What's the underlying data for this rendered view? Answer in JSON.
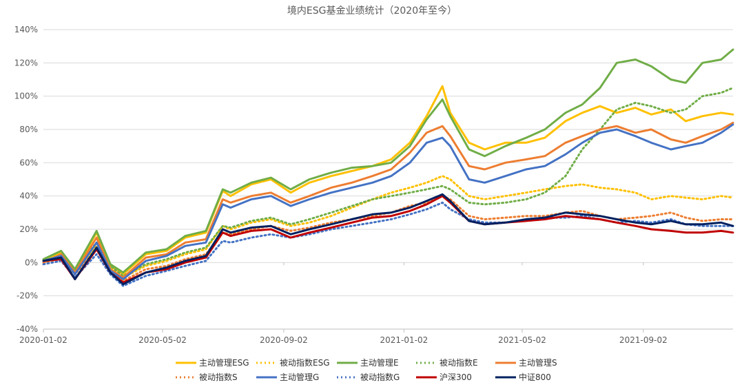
{
  "chart_data": {
    "type": "line",
    "title": "境内ESG基金业绩统计（2020年至今）",
    "y_tick_labels": [
      "140%",
      "120%",
      "100%",
      "80%",
      "60%",
      "40%",
      "20%",
      "0%",
      "-20%",
      "-40%"
    ],
    "x_tick_labels": [
      "2020-01-02",
      "2020-05-02",
      "2020-09-02",
      "2021-01-02",
      "2021-05-02",
      "2021-09-02"
    ],
    "ylim": [
      -40,
      140
    ],
    "y_unit": "%",
    "grid": "horizontal",
    "legend_position": "bottom",
    "x": [
      "2020-01-02",
      "2020-01-20",
      "2020-02-03",
      "2020-02-25",
      "2020-03-10",
      "2020-03-23",
      "2020-04-15",
      "2020-05-06",
      "2020-05-25",
      "2020-06-15",
      "2020-07-02",
      "2020-07-10",
      "2020-07-31",
      "2020-08-20",
      "2020-09-09",
      "2020-09-28",
      "2020-10-20",
      "2020-11-10",
      "2020-12-01",
      "2020-12-20",
      "2021-01-08",
      "2021-01-25",
      "2021-02-10",
      "2021-02-18",
      "2021-03-09",
      "2021-03-25",
      "2021-04-15",
      "2021-05-06",
      "2021-05-25",
      "2021-06-15",
      "2021-07-02",
      "2021-07-20",
      "2021-08-06",
      "2021-08-25",
      "2021-09-10",
      "2021-09-30",
      "2021-10-15",
      "2021-11-01",
      "2021-11-20",
      "2021-12-02"
    ],
    "series": [
      {
        "name": "主动管理ESG",
        "color": "#FFC000",
        "dash": "solid",
        "values": [
          1,
          6,
          -5,
          18,
          -2,
          -7,
          5,
          7,
          15,
          18,
          43,
          40,
          47,
          50,
          42,
          48,
          52,
          55,
          58,
          62,
          72,
          88,
          106,
          90,
          72,
          68,
          72,
          72,
          75,
          85,
          90,
          94,
          90,
          93,
          89,
          92,
          85,
          88,
          90,
          89
        ]
      },
      {
        "name": "被动指数ESG",
        "color": "#FFC000",
        "dash": "dot",
        "values": [
          1,
          3,
          -6,
          10,
          -3,
          -9,
          -2,
          1,
          5,
          8,
          22,
          20,
          24,
          26,
          22,
          24,
          28,
          33,
          38,
          42,
          45,
          48,
          52,
          50,
          40,
          38,
          40,
          42,
          44,
          46,
          47,
          45,
          44,
          42,
          38,
          40,
          39,
          38,
          40,
          39
        ]
      },
      {
        "name": "主动管理E",
        "color": "#70AD47",
        "dash": "solid",
        "values": [
          2,
          7,
          -4,
          19,
          -1,
          -6,
          6,
          8,
          16,
          19,
          44,
          42,
          48,
          51,
          44,
          50,
          54,
          57,
          58,
          60,
          70,
          86,
          98,
          88,
          68,
          64,
          70,
          75,
          80,
          90,
          95,
          105,
          120,
          122,
          118,
          110,
          108,
          120,
          122,
          128
        ]
      },
      {
        "name": "被动指数E",
        "color": "#70AD47",
        "dash": "dot",
        "values": [
          1,
          4,
          -5,
          12,
          -2,
          -8,
          -1,
          2,
          6,
          9,
          22,
          21,
          25,
          27,
          23,
          26,
          30,
          34,
          38,
          40,
          42,
          44,
          46,
          44,
          36,
          35,
          36,
          38,
          42,
          52,
          68,
          80,
          92,
          96,
          94,
          90,
          92,
          100,
          102,
          105
        ]
      },
      {
        "name": "主动管理S",
        "color": "#ED7D31",
        "dash": "solid",
        "values": [
          0,
          5,
          -6,
          15,
          -4,
          -9,
          3,
          5,
          12,
          14,
          38,
          36,
          40,
          42,
          36,
          40,
          45,
          48,
          52,
          56,
          66,
          78,
          82,
          76,
          58,
          56,
          60,
          62,
          64,
          72,
          76,
          80,
          82,
          78,
          80,
          74,
          72,
          76,
          80,
          84
        ]
      },
      {
        "name": "被动指数S",
        "color": "#ED7D31",
        "dash": "dot",
        "values": [
          0,
          2,
          -7,
          8,
          -5,
          -11,
          -4,
          -2,
          2,
          5,
          18,
          17,
          20,
          22,
          19,
          21,
          24,
          26,
          28,
          30,
          34,
          36,
          40,
          38,
          28,
          26,
          27,
          28,
          28,
          30,
          31,
          28,
          26,
          27,
          28,
          30,
          27,
          25,
          26,
          26
        ]
      },
      {
        "name": "主动管理G",
        "color": "#4472C4",
        "dash": "solid",
        "values": [
          1,
          4,
          -7,
          12,
          -5,
          -10,
          1,
          4,
          10,
          12,
          35,
          33,
          38,
          40,
          34,
          38,
          42,
          45,
          48,
          52,
          60,
          72,
          75,
          70,
          50,
          48,
          52,
          56,
          58,
          65,
          72,
          78,
          80,
          76,
          72,
          68,
          70,
          72,
          78,
          83
        ]
      },
      {
        "name": "被动指数G",
        "color": "#4472C4",
        "dash": "dot",
        "values": [
          -1,
          1,
          -9,
          5,
          -7,
          -14,
          -8,
          -5,
          -2,
          1,
          13,
          12,
          15,
          17,
          15,
          17,
          20,
          22,
          24,
          26,
          29,
          32,
          36,
          32,
          26,
          24,
          24,
          26,
          27,
          27,
          28,
          26,
          24,
          25,
          24,
          26,
          23,
          22,
          22,
          22
        ]
      },
      {
        "name": "沪深300",
        "color": "#C00000",
        "dash": "solid",
        "values": [
          1,
          2,
          -10,
          8,
          -6,
          -12,
          -6,
          -4,
          0,
          3,
          18,
          16,
          19,
          20,
          15,
          18,
          21,
          24,
          27,
          28,
          31,
          35,
          40,
          36,
          25,
          23,
          24,
          25,
          26,
          28,
          27,
          26,
          24,
          22,
          20,
          19,
          18,
          18,
          19,
          18
        ]
      },
      {
        "name": "中证800",
        "color": "#002060",
        "dash": "solid",
        "values": [
          1,
          3,
          -10,
          9,
          -6,
          -13,
          -6,
          -3,
          1,
          4,
          20,
          18,
          21,
          22,
          17,
          20,
          23,
          26,
          29,
          30,
          33,
          37,
          41,
          37,
          25,
          23,
          24,
          26,
          27,
          30,
          29,
          28,
          26,
          24,
          23,
          25,
          23,
          23,
          24,
          22
        ]
      }
    ]
  }
}
